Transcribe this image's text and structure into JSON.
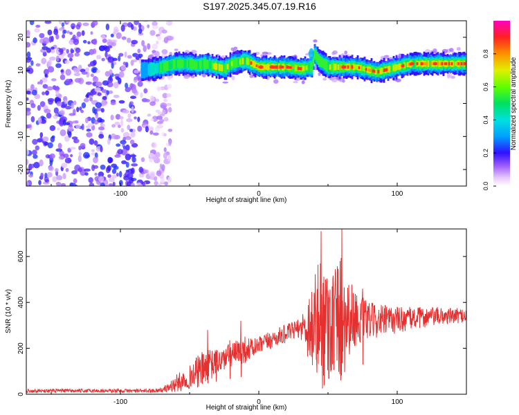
{
  "figure_title": "S197.2025.345.07.19.R16",
  "chart_data": [
    {
      "type": "heatmap",
      "title": "S197.2025.345.07.19.R16",
      "xlabel": "Height of straight line (km)",
      "ylabel": "Frequency (Hz)",
      "xlim": [
        -168,
        150
      ],
      "ylim": [
        -25,
        25
      ],
      "xticks": [
        -100,
        0,
        100
      ],
      "yticks": [
        -20,
        -10,
        0,
        10,
        20
      ],
      "colorbar": {
        "label": "Normalized spectral amplitude",
        "range": [
          0,
          1
        ],
        "ticks": [
          "0.0",
          "0.2",
          "0.4",
          "0.6",
          "0.8"
        ],
        "tick_values": [
          0,
          0.2,
          0.4,
          0.6,
          0.8
        ]
      },
      "noise_region": {
        "x_range": [
          -168,
          -63
        ],
        "freq_range": [
          -25,
          25
        ],
        "typical_amplitude": 0.15
      },
      "signal_band": {
        "x": [
          -85,
          -75,
          -70,
          -60,
          -50,
          -45,
          -40,
          -30,
          -25,
          -20,
          -10,
          -5,
          0,
          10,
          20,
          30,
          38,
          40,
          43,
          50,
          60,
          70,
          80,
          85,
          90,
          95,
          100,
          110,
          120,
          130,
          140,
          150
        ],
        "center_freq_hz": [
          10,
          10.5,
          11,
          12,
          12,
          11.5,
          12,
          11,
          10.5,
          12,
          13,
          12,
          11,
          11,
          11,
          10.5,
          11,
          15,
          13,
          11,
          11,
          11,
          10,
          9.5,
          10,
          10.5,
          11,
          12,
          12,
          12,
          12,
          12
        ],
        "peak_amplitude": [
          0.3,
          0.45,
          0.55,
          0.6,
          0.55,
          0.5,
          0.6,
          0.7,
          0.65,
          0.7,
          0.8,
          0.85,
          0.9,
          0.9,
          0.9,
          0.85,
          0.55,
          0.5,
          0.5,
          0.7,
          0.85,
          0.85,
          0.85,
          0.85,
          0.85,
          0.8,
          0.8,
          0.9,
          0.95,
          0.95,
          0.95,
          0.95
        ]
      }
    },
    {
      "type": "line",
      "title": "",
      "xlabel": "Height of straight line (km)",
      "ylabel": "SNR (10 * v/v)",
      "xlim": [
        -168,
        150
      ],
      "ylim": [
        0,
        720
      ],
      "xticks": [
        -100,
        0,
        100
      ],
      "yticks": [
        0,
        200,
        400,
        600
      ],
      "color": "#e53030",
      "series": [
        {
          "name": "SNR",
          "x": [
            -168,
            -140,
            -110,
            -80,
            -70,
            -65,
            -60,
            -55,
            -50,
            -45,
            -40,
            -35,
            -30,
            -25,
            -20,
            -15,
            -10,
            -5,
            0,
            10,
            20,
            30,
            40,
            45,
            50,
            55,
            60,
            65,
            70,
            80,
            90,
            100,
            110,
            120,
            130,
            140,
            150
          ],
          "mean": [
            15,
            15,
            15,
            15,
            18,
            30,
            45,
            60,
            75,
            95,
            110,
            125,
            140,
            155,
            170,
            180,
            195,
            200,
            210,
            240,
            265,
            290,
            300,
            310,
            320,
            330,
            340,
            340,
            330,
            320,
            320,
            325,
            330,
            335,
            340,
            340,
            345
          ],
          "spread": [
            8,
            8,
            8,
            8,
            10,
            20,
            40,
            45,
            50,
            70,
            80,
            70,
            60,
            55,
            55,
            60,
            60,
            45,
            40,
            40,
            40,
            40,
            230,
            300,
            280,
            260,
            300,
            180,
            120,
            80,
            70,
            60,
            50,
            45,
            40,
            35,
            30
          ]
        }
      ],
      "spikes": [
        {
          "x": -37,
          "y": 280
        },
        {
          "x": -31,
          "y": 185
        },
        {
          "x": -21,
          "y": 235
        },
        {
          "x": -13,
          "y": 320
        },
        {
          "x": 45,
          "y": 710
        },
        {
          "x": 53,
          "y": 470
        },
        {
          "x": 60,
          "y": 720
        },
        {
          "x": 75,
          "y": 460
        }
      ]
    }
  ]
}
